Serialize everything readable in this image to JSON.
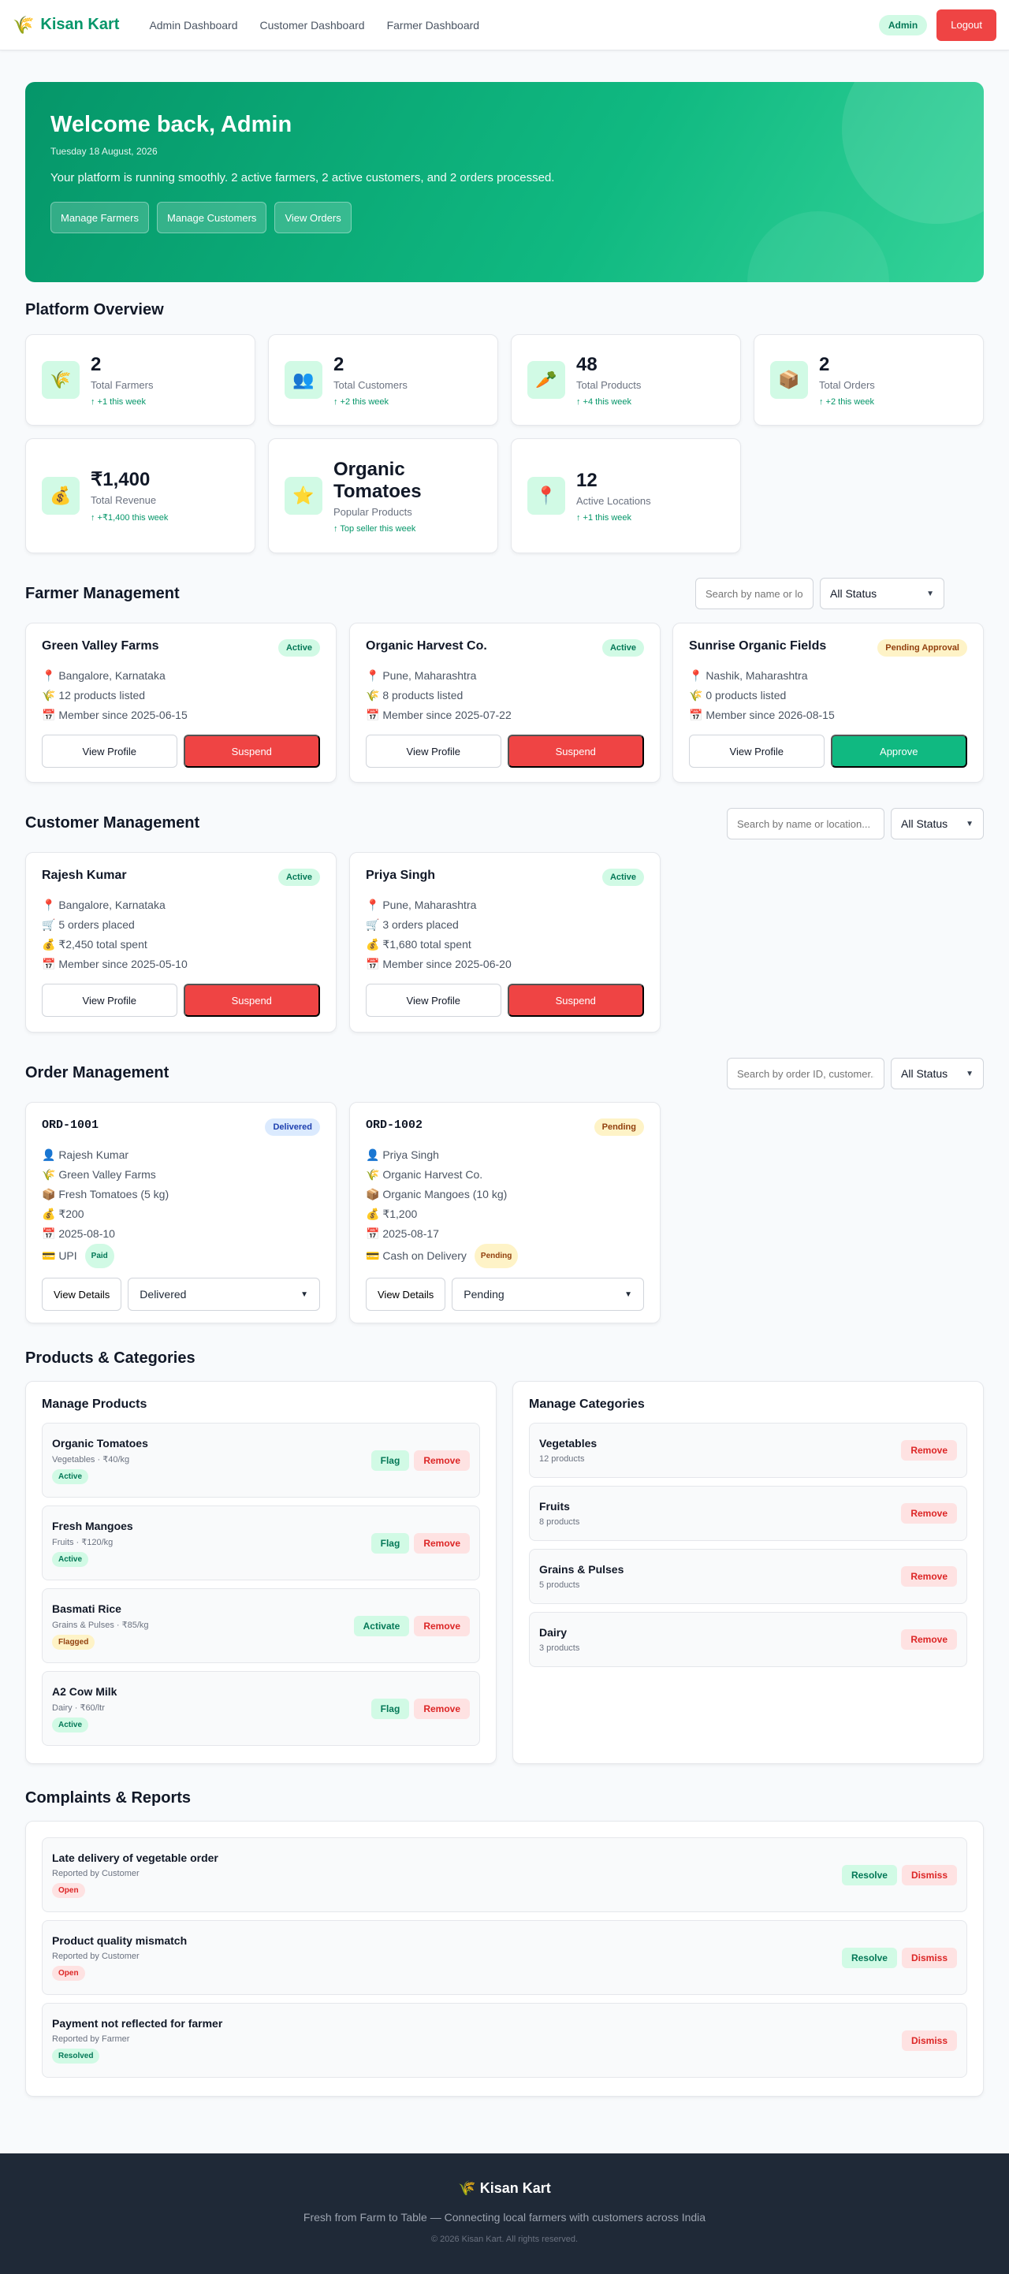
{
  "nav": {
    "brand": "Kisan Kart",
    "links": [
      "Admin Dashboard",
      "Customer Dashboard",
      "Farmer Dashboard"
    ],
    "role_badge": "Admin",
    "logout_label": "Logout"
  },
  "hero": {
    "title": "Welcome back, Admin",
    "date": "Tuesday 18 August, 2026",
    "message": "Your platform is running smoothly. 2 active farmers, 2 active customers, and 2 orders processed.",
    "buttons": [
      "Manage Farmers",
      "Manage Customers",
      "View Orders"
    ]
  },
  "overview": {
    "title": "Platform Overview",
    "stats": [
      {
        "icon": "wheat-icon",
        "glyph": "🌾",
        "value": "2",
        "label": "Total Farmers",
        "trend": "↑ +1 this week"
      },
      {
        "icon": "users-icon",
        "glyph": "👥",
        "value": "2",
        "label": "Total Customers",
        "trend": "↑ +2 this week"
      },
      {
        "icon": "carrot-icon",
        "glyph": "🥕",
        "value": "48",
        "label": "Total Products",
        "trend": "↑ +4 this week"
      },
      {
        "icon": "box-icon",
        "glyph": "📦",
        "value": "2",
        "label": "Total Orders",
        "trend": "↑ +2 this week"
      },
      {
        "icon": "money-bag-icon",
        "glyph": "💰",
        "value": "₹1,400",
        "label": "Total Revenue",
        "trend": "↑ +₹1,400 this week"
      },
      {
        "icon": "star-icon",
        "glyph": "⭐",
        "value": "Organic Tomatoes",
        "label": "Popular Products",
        "trend": "↑ Top seller this week"
      },
      {
        "icon": "pin-icon",
        "glyph": "📍",
        "value": "12",
        "label": "Active Locations",
        "trend": "↑ +1 this week"
      }
    ]
  },
  "farmers": {
    "title": "Farmer Management",
    "search_placeholder": "Search by name or location...",
    "status_filter": "All Status",
    "cards": [
      {
        "name": "Green Valley Farms",
        "status": "Active",
        "location": "📍 Bangalore, Karnataka",
        "products": "🌾 12 products listed",
        "since": "📅 Member since 2025-06-15",
        "view": "View Profile",
        "action": "Suspend"
      },
      {
        "name": "Organic Harvest Co.",
        "status": "Active",
        "location": "📍 Pune, Maharashtra",
        "products": "🌾 8 products listed",
        "since": "📅 Member since 2025-07-22",
        "view": "View Profile",
        "action": "Suspend"
      },
      {
        "name": "Sunrise Organic Fields",
        "status": "Pending Approval",
        "location": "📍 Nashik, Maharashtra",
        "products": "🌾 0 products listed",
        "since": "📅 Member since 2026-08-15",
        "view": "View Profile",
        "action": "Approve"
      }
    ]
  },
  "customers": {
    "title": "Customer Management",
    "search_placeholder": "Search by name or location...",
    "status_filter": "All Status",
    "cards": [
      {
        "name": "Rajesh Kumar",
        "status": "Active",
        "location": "📍 Bangalore, Karnataka",
        "orders": "🛒 5 orders placed",
        "spent": "💰 ₹2,450 total spent",
        "since": "📅 Member since 2025-05-10",
        "view": "View Profile",
        "action": "Suspend"
      },
      {
        "name": "Priya Singh",
        "status": "Active",
        "location": "📍 Pune, Maharashtra",
        "orders": "🛒 3 orders placed",
        "spent": "💰 ₹1,680 total spent",
        "since": "📅 Member since 2025-06-20",
        "view": "View Profile",
        "action": "Suspend"
      }
    ]
  },
  "orders": {
    "title": "Order Management",
    "search_placeholder": "Search by order ID, customer...",
    "status_filter": "All Status",
    "cards": [
      {
        "id": "ORD-1001",
        "status": "Delivered",
        "customer": "👤 Rajesh Kumar",
        "farmer": "🌾 Green Valley Farms",
        "item": "📦 Fresh Tomatoes (5 kg)",
        "amount": "💰 ₹200",
        "date": "📅 2025-08-10",
        "payment": "💳 UPI",
        "payment_status": "Paid",
        "details": "View Details",
        "status_select": "Delivered"
      },
      {
        "id": "ORD-1002",
        "status": "Pending",
        "customer": "👤 Priya Singh",
        "farmer": "🌾 Organic Harvest Co.",
        "item": "📦 Organic Mangoes (10 kg)",
        "amount": "💰 ₹1,200",
        "date": "📅 2025-08-17",
        "payment": "💳 Cash on Delivery",
        "payment_status": "Pending",
        "details": "View Details",
        "status_select": "Pending"
      }
    ]
  },
  "catalog": {
    "title": "Products & Categories",
    "products_title": "Manage Products",
    "products": [
      {
        "name": "Organic Tomatoes",
        "meta": "Vegetables · ₹40/kg",
        "status": "Active",
        "primary": "Flag",
        "secondary": "Remove"
      },
      {
        "name": "Fresh Mangoes",
        "meta": "Fruits · ₹120/kg",
        "status": "Active",
        "primary": "Flag",
        "secondary": "Remove"
      },
      {
        "name": "Basmati Rice",
        "meta": "Grains & Pulses · ₹85/kg",
        "status": "Flagged",
        "primary": "Activate",
        "secondary": "Remove"
      },
      {
        "name": "A2 Cow Milk",
        "meta": "Dairy · ₹60/ltr",
        "status": "Active",
        "primary": "Flag",
        "secondary": "Remove"
      }
    ],
    "categories_title": "Manage Categories",
    "categories": [
      {
        "name": "Vegetables",
        "count": "12 products",
        "action": "Remove"
      },
      {
        "name": "Fruits",
        "count": "8 products",
        "action": "Remove"
      },
      {
        "name": "Grains & Pulses",
        "count": "5 products",
        "action": "Remove"
      },
      {
        "name": "Dairy",
        "count": "3 products",
        "action": "Remove"
      }
    ]
  },
  "complaints": {
    "title": "Complaints & Reports",
    "items": [
      {
        "title": "Late delivery of vegetable order",
        "by": "Reported by Customer",
        "status": "Open",
        "resolve": "Resolve",
        "dismiss": "Dismiss"
      },
      {
        "title": "Product quality mismatch",
        "by": "Reported by Customer",
        "status": "Open",
        "resolve": "Resolve",
        "dismiss": "Dismiss"
      },
      {
        "title": "Payment not reflected for farmer",
        "by": "Reported by Farmer",
        "status": "Resolved",
        "resolve": "",
        "dismiss": "Dismiss"
      }
    ]
  },
  "footer": {
    "brand": "Kisan Kart",
    "tagline": "Fresh from Farm to Table — Connecting local farmers with customers across India",
    "copyright": "© 2026 Kisan Kart. All rights reserved."
  },
  "colors": {
    "accent": "#10b981",
    "danger": "#ef4444",
    "footer_bg": "#1f2937"
  }
}
